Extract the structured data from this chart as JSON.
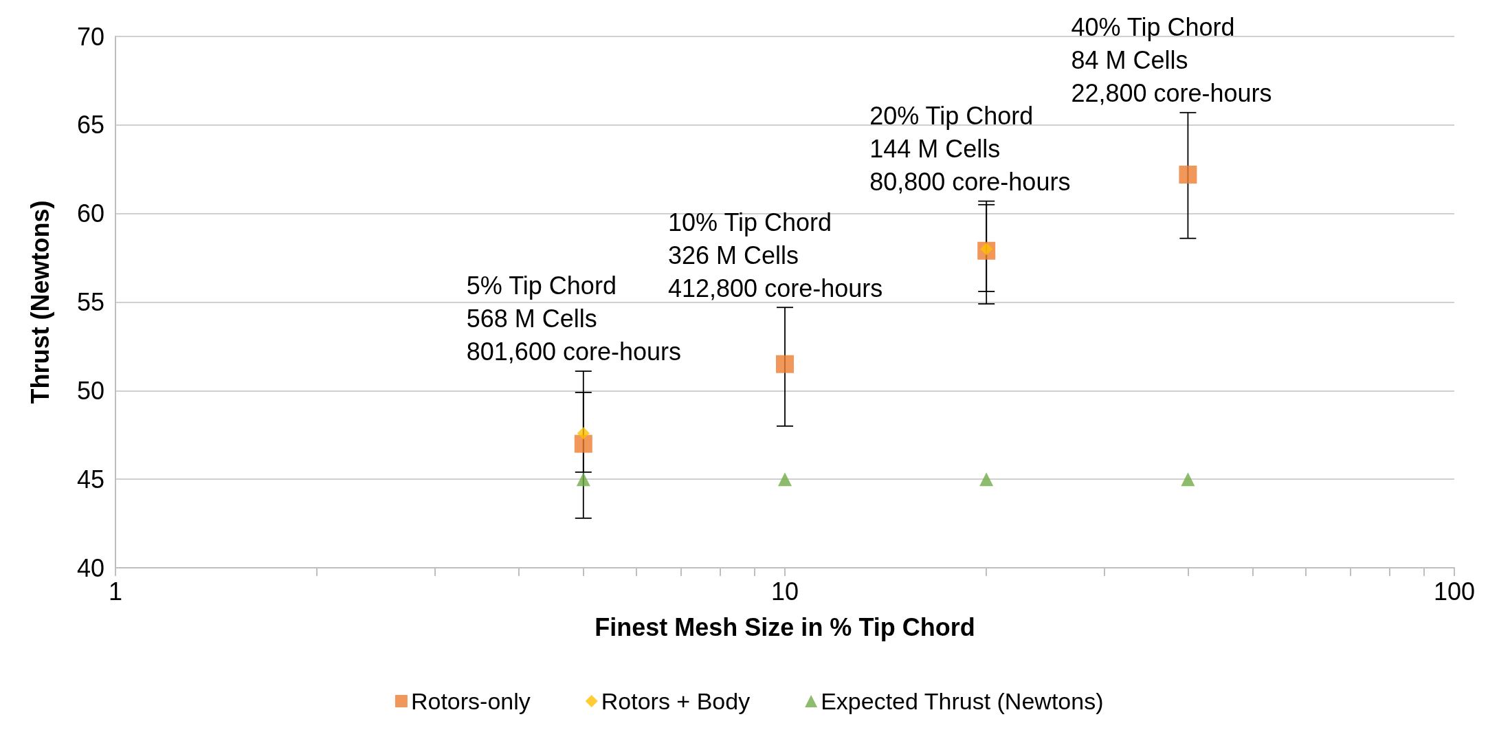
{
  "chart_data": {
    "type": "scatter",
    "xlabel": "Finest Mesh Size in % Tip Chord",
    "ylabel": "Thrust (Newtons)",
    "log": "x",
    "xlim": [
      1,
      100
    ],
    "xticks": [
      1,
      {
        "value": 2,
        "label": null
      },
      {
        "value": 3,
        "label": null
      },
      {
        "value": 4,
        "label": null
      },
      {
        "value": 5,
        "label": null
      },
      {
        "value": 6,
        "label": null
      },
      {
        "value": 7,
        "label": null
      },
      {
        "value": 8,
        "label": null
      },
      {
        "value": 9,
        "label": null
      },
      10,
      {
        "value": 20,
        "label": null
      },
      {
        "value": 30,
        "label": null
      },
      {
        "value": 40,
        "label": null
      },
      {
        "value": 50,
        "label": null
      },
      {
        "value": 60,
        "label": null
      },
      {
        "value": 70,
        "label": null
      },
      {
        "value": 80,
        "label": null
      },
      {
        "value": 90,
        "label": null
      },
      100
    ],
    "ylim": [
      40,
      70
    ],
    "yticks": [
      40,
      45,
      50,
      55,
      60,
      65,
      70
    ],
    "grid": "y",
    "legend": "bottom",
    "x": [
      5,
      10,
      20,
      40
    ],
    "series": [
      {
        "name": "Rotors-only",
        "color": "#ed7d31",
        "marker": "square",
        "values": [
          47.0,
          51.5,
          57.9,
          62.2
        ],
        "errors": [
          [
            42.8,
            51.1
          ],
          [
            48.0,
            54.7
          ],
          [
            54.9,
            60.7
          ],
          [
            58.6,
            65.7
          ]
        ]
      },
      {
        "name": "Rotors + Body",
        "color": "#ffc000",
        "marker": "diamond",
        "values": [
          47.6,
          null,
          58.0,
          null
        ],
        "errors": [
          [
            45.4,
            49.9
          ],
          null,
          [
            55.6,
            60.5
          ],
          null
        ]
      },
      {
        "name": "Expected Thrust (Newtons)",
        "color": "#70ad47",
        "marker": "triangle",
        "values": [
          45,
          45,
          45,
          45
        ]
      }
    ],
    "annotations": [
      {
        "text": "5% Tip Chord\n568 M Cells\n801,600 core-hours",
        "x": 5,
        "y": 51.1
      },
      {
        "text": "10% Tip Chord\n326 M Cells\n412,800 core-hours",
        "x": 10,
        "y": 54.7
      },
      {
        "text": "20% Tip Chord\n144 M Cells\n80,800 core-hours",
        "x": 20,
        "y": 60.7
      },
      {
        "text": "40% Tip Chord\n84 M Cells\n22,800 core-hours",
        "x": 40,
        "y": 65.7
      }
    ]
  }
}
